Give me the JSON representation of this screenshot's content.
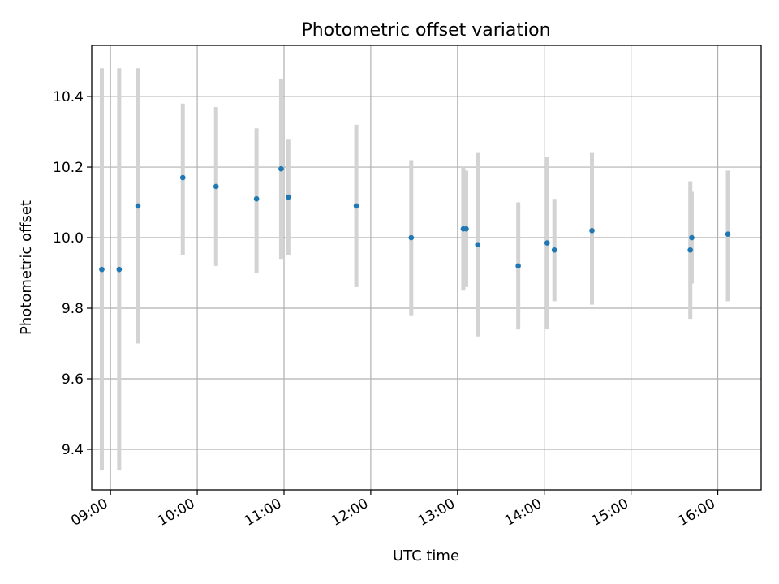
{
  "chart_data": {
    "type": "scatter",
    "title": "Photometric offset variation",
    "xlabel": "UTC time",
    "ylabel": "Photometric offset",
    "xlim": [
      "08:47",
      "16:30"
    ],
    "ylim": [
      9.285,
      10.545
    ],
    "grid": true,
    "x_ticks": [
      "09:00",
      "10:00",
      "11:00",
      "12:00",
      "13:00",
      "14:00",
      "15:00",
      "16:00"
    ],
    "y_ticks": [
      "9.4",
      "9.6",
      "9.8",
      "10.0",
      "10.2",
      "10.4"
    ],
    "colors": {
      "point": "#1f77b4",
      "errorbar": "#d3d3d3",
      "grid": "#b0b0b0"
    },
    "series": [
      {
        "points": [
          {
            "time": "08:54",
            "y": 9.91,
            "yerr_low": 9.34,
            "yerr_high": 10.48
          },
          {
            "time": "09:06",
            "y": 9.91,
            "yerr_low": 9.34,
            "yerr_high": 10.48
          },
          {
            "time": "09:19",
            "y": 10.09,
            "yerr_low": 9.7,
            "yerr_high": 10.48
          },
          {
            "time": "09:50",
            "y": 10.17,
            "yerr_low": 9.95,
            "yerr_high": 10.38
          },
          {
            "time": "10:13",
            "y": 10.145,
            "yerr_low": 9.92,
            "yerr_high": 10.37
          },
          {
            "time": "10:41",
            "y": 10.11,
            "yerr_low": 9.9,
            "yerr_high": 10.31
          },
          {
            "time": "10:58",
            "y": 10.195,
            "yerr_low": 9.94,
            "yerr_high": 10.45
          },
          {
            "time": "11:03",
            "y": 10.115,
            "yerr_low": 9.95,
            "yerr_high": 10.28
          },
          {
            "time": "11:50",
            "y": 10.09,
            "yerr_low": 9.86,
            "yerr_high": 10.32
          },
          {
            "time": "12:28",
            "y": 10.0,
            "yerr_low": 9.78,
            "yerr_high": 10.22
          },
          {
            "time": "13:04",
            "y": 10.025,
            "yerr_low": 9.85,
            "yerr_high": 10.2
          },
          {
            "time": "13:06",
            "y": 10.025,
            "yerr_low": 9.86,
            "yerr_high": 10.19
          },
          {
            "time": "13:14",
            "y": 9.98,
            "yerr_low": 9.72,
            "yerr_high": 10.24
          },
          {
            "time": "13:42",
            "y": 9.92,
            "yerr_low": 9.74,
            "yerr_high": 10.1
          },
          {
            "time": "14:02",
            "y": 9.985,
            "yerr_low": 9.74,
            "yerr_high": 10.23
          },
          {
            "time": "14:07",
            "y": 9.965,
            "yerr_low": 9.82,
            "yerr_high": 10.11
          },
          {
            "time": "14:33",
            "y": 10.02,
            "yerr_low": 9.81,
            "yerr_high": 10.24
          },
          {
            "time": "15:41",
            "y": 9.965,
            "yerr_low": 9.77,
            "yerr_high": 10.16
          },
          {
            "time": "15:42",
            "y": 10.0,
            "yerr_low": 9.87,
            "yerr_high": 10.13
          },
          {
            "time": "16:07",
            "y": 10.01,
            "yerr_low": 9.82,
            "yerr_high": 10.19
          }
        ]
      }
    ]
  }
}
